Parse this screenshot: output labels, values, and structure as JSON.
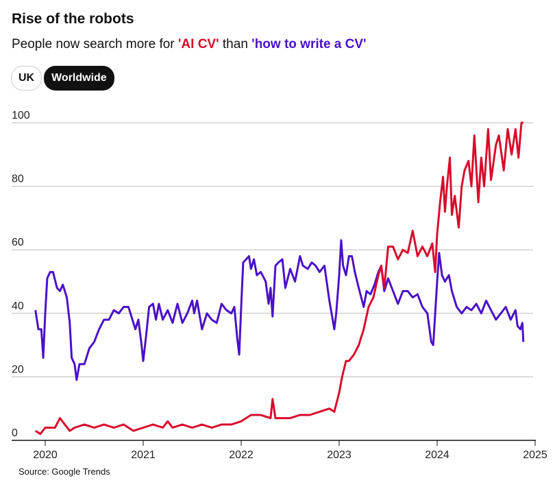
{
  "header": {
    "title": "Rise of the robots",
    "subtitle_pre": "People now search more for ",
    "subtitle_ai": "'AI CV'",
    "subtitle_mid": " than ",
    "subtitle_hw": "'how to write a CV'"
  },
  "toggles": [
    {
      "label": "UK",
      "active": false
    },
    {
      "label": "Worldwide",
      "active": true
    }
  ],
  "source": "Source: Google Trends",
  "chart_data": {
    "type": "line",
    "title": "Rise of the robots",
    "xlabel": "",
    "ylabel": "",
    "xlim": [
      2019.7,
      2025
    ],
    "ylim": [
      0,
      100
    ],
    "x_ticks": [
      "2020",
      "2021",
      "2022",
      "2023",
      "2024",
      "2025"
    ],
    "y_ticks": [
      "0",
      "20",
      "40",
      "60",
      "80",
      "100"
    ],
    "grid": true,
    "series": [
      {
        "name": "'how to write a CV'",
        "color": "#4a11c8",
        "points": [
          [
            2019.9,
            41
          ],
          [
            2019.93,
            35
          ],
          [
            2019.96,
            35
          ],
          [
            2019.98,
            26
          ],
          [
            2020.0,
            40
          ],
          [
            2020.02,
            51
          ],
          [
            2020.05,
            53
          ],
          [
            2020.08,
            53
          ],
          [
            2020.12,
            48
          ],
          [
            2020.15,
            47
          ],
          [
            2020.18,
            49
          ],
          [
            2020.22,
            45
          ],
          [
            2020.25,
            37
          ],
          [
            2020.27,
            26
          ],
          [
            2020.3,
            24
          ],
          [
            2020.32,
            19
          ],
          [
            2020.35,
            24
          ],
          [
            2020.4,
            24
          ],
          [
            2020.45,
            29
          ],
          [
            2020.5,
            31
          ],
          [
            2020.55,
            35
          ],
          [
            2020.6,
            38
          ],
          [
            2020.65,
            38
          ],
          [
            2020.7,
            41
          ],
          [
            2020.75,
            40
          ],
          [
            2020.8,
            42
          ],
          [
            2020.85,
            42
          ],
          [
            2020.9,
            37
          ],
          [
            2020.92,
            35
          ],
          [
            2020.95,
            38
          ],
          [
            2020.98,
            31
          ],
          [
            2021.0,
            25
          ],
          [
            2021.03,
            33
          ],
          [
            2021.06,
            42
          ],
          [
            2021.1,
            43
          ],
          [
            2021.13,
            38
          ],
          [
            2021.16,
            43
          ],
          [
            2021.2,
            38
          ],
          [
            2021.25,
            41
          ],
          [
            2021.3,
            37
          ],
          [
            2021.35,
            43
          ],
          [
            2021.4,
            37
          ],
          [
            2021.45,
            40
          ],
          [
            2021.5,
            44
          ],
          [
            2021.52,
            40
          ],
          [
            2021.55,
            44
          ],
          [
            2021.6,
            35
          ],
          [
            2021.65,
            40
          ],
          [
            2021.7,
            38
          ],
          [
            2021.75,
            37
          ],
          [
            2021.8,
            43
          ],
          [
            2021.85,
            41
          ],
          [
            2021.9,
            40
          ],
          [
            2021.93,
            42
          ],
          [
            2021.96,
            32
          ],
          [
            2021.98,
            27
          ],
          [
            2022.0,
            42
          ],
          [
            2022.02,
            56
          ],
          [
            2022.05,
            57
          ],
          [
            2022.08,
            58
          ],
          [
            2022.1,
            54
          ],
          [
            2022.13,
            57
          ],
          [
            2022.16,
            52
          ],
          [
            2022.2,
            53
          ],
          [
            2022.25,
            50
          ],
          [
            2022.28,
            43
          ],
          [
            2022.3,
            48
          ],
          [
            2022.32,
            39
          ],
          [
            2022.35,
            55
          ],
          [
            2022.38,
            56
          ],
          [
            2022.42,
            57
          ],
          [
            2022.45,
            48
          ],
          [
            2022.5,
            54
          ],
          [
            2022.55,
            50
          ],
          [
            2022.6,
            58
          ],
          [
            2022.63,
            55
          ],
          [
            2022.68,
            54
          ],
          [
            2022.72,
            56
          ],
          [
            2022.76,
            55
          ],
          [
            2022.8,
            53
          ],
          [
            2022.85,
            55
          ],
          [
            2022.9,
            44
          ],
          [
            2022.95,
            35
          ],
          [
            2022.97,
            40
          ],
          [
            2023.0,
            52
          ],
          [
            2023.02,
            63
          ],
          [
            2023.04,
            55
          ],
          [
            2023.07,
            52
          ],
          [
            2023.1,
            58
          ],
          [
            2023.13,
            58
          ],
          [
            2023.16,
            53
          ],
          [
            2023.2,
            48
          ],
          [
            2023.25,
            42
          ],
          [
            2023.28,
            47
          ],
          [
            2023.32,
            46
          ],
          [
            2023.36,
            49
          ],
          [
            2023.4,
            53
          ],
          [
            2023.43,
            55
          ],
          [
            2023.46,
            47
          ],
          [
            2023.5,
            51
          ],
          [
            2023.55,
            47
          ],
          [
            2023.6,
            43
          ],
          [
            2023.65,
            47
          ],
          [
            2023.7,
            47
          ],
          [
            2023.75,
            45
          ],
          [
            2023.8,
            46
          ],
          [
            2023.85,
            42
          ],
          [
            2023.9,
            40
          ],
          [
            2023.94,
            31
          ],
          [
            2023.96,
            30
          ],
          [
            2024.0,
            50
          ],
          [
            2024.02,
            59
          ],
          [
            2024.05,
            52
          ],
          [
            2024.08,
            50
          ],
          [
            2024.12,
            52
          ],
          [
            2024.15,
            47
          ],
          [
            2024.2,
            42
          ],
          [
            2024.25,
            40
          ],
          [
            2024.3,
            42
          ],
          [
            2024.35,
            41
          ],
          [
            2024.4,
            43
          ],
          [
            2024.45,
            40
          ],
          [
            2024.5,
            44
          ],
          [
            2024.55,
            41
          ],
          [
            2024.6,
            38
          ],
          [
            2024.65,
            40
          ],
          [
            2024.7,
            42
          ],
          [
            2024.75,
            38
          ],
          [
            2024.8,
            41
          ],
          [
            2024.82,
            36
          ],
          [
            2024.85,
            35
          ],
          [
            2024.87,
            37
          ],
          [
            2024.88,
            31
          ]
        ]
      },
      {
        "name": "'AI CV'",
        "color": "#d90a2c",
        "points": [
          [
            2019.9,
            3
          ],
          [
            2019.95,
            2
          ],
          [
            2020.0,
            4
          ],
          [
            2020.05,
            4
          ],
          [
            2020.1,
            4
          ],
          [
            2020.15,
            7
          ],
          [
            2020.2,
            5
          ],
          [
            2020.25,
            3
          ],
          [
            2020.3,
            4
          ],
          [
            2020.4,
            5
          ],
          [
            2020.5,
            4
          ],
          [
            2020.6,
            5
          ],
          [
            2020.7,
            4
          ],
          [
            2020.8,
            5
          ],
          [
            2020.9,
            3
          ],
          [
            2021.0,
            4
          ],
          [
            2021.1,
            5
          ],
          [
            2021.2,
            4
          ],
          [
            2021.25,
            6
          ],
          [
            2021.3,
            4
          ],
          [
            2021.4,
            5
          ],
          [
            2021.5,
            4
          ],
          [
            2021.6,
            5
          ],
          [
            2021.7,
            4
          ],
          [
            2021.8,
            5
          ],
          [
            2021.9,
            5
          ],
          [
            2022.0,
            6
          ],
          [
            2022.1,
            8
          ],
          [
            2022.2,
            8
          ],
          [
            2022.3,
            7
          ],
          [
            2022.32,
            13
          ],
          [
            2022.35,
            7
          ],
          [
            2022.5,
            7
          ],
          [
            2022.6,
            8
          ],
          [
            2022.7,
            8
          ],
          [
            2022.8,
            9
          ],
          [
            2022.9,
            10
          ],
          [
            2022.95,
            9
          ],
          [
            2023.0,
            15
          ],
          [
            2023.03,
            20
          ],
          [
            2023.07,
            25
          ],
          [
            2023.1,
            25
          ],
          [
            2023.15,
            27
          ],
          [
            2023.2,
            30
          ],
          [
            2023.25,
            35
          ],
          [
            2023.3,
            42
          ],
          [
            2023.35,
            45
          ],
          [
            2023.4,
            52
          ],
          [
            2023.43,
            55
          ],
          [
            2023.46,
            48
          ],
          [
            2023.5,
            61
          ],
          [
            2023.55,
            61
          ],
          [
            2023.6,
            57
          ],
          [
            2023.65,
            60
          ],
          [
            2023.7,
            59
          ],
          [
            2023.75,
            66
          ],
          [
            2023.8,
            58
          ],
          [
            2023.85,
            61
          ],
          [
            2023.9,
            58
          ],
          [
            2023.95,
            62
          ],
          [
            2023.98,
            53
          ],
          [
            2024.0,
            65
          ],
          [
            2024.03,
            75
          ],
          [
            2024.06,
            83
          ],
          [
            2024.08,
            72
          ],
          [
            2024.1,
            80
          ],
          [
            2024.13,
            89
          ],
          [
            2024.15,
            71
          ],
          [
            2024.18,
            77
          ],
          [
            2024.22,
            67
          ],
          [
            2024.25,
            80
          ],
          [
            2024.28,
            85
          ],
          [
            2024.32,
            88
          ],
          [
            2024.35,
            80
          ],
          [
            2024.38,
            96
          ],
          [
            2024.42,
            75
          ],
          [
            2024.45,
            89
          ],
          [
            2024.48,
            80
          ],
          [
            2024.52,
            98
          ],
          [
            2024.55,
            82
          ],
          [
            2024.6,
            93
          ],
          [
            2024.63,
            96
          ],
          [
            2024.68,
            85
          ],
          [
            2024.72,
            98
          ],
          [
            2024.76,
            90
          ],
          [
            2024.8,
            98
          ],
          [
            2024.83,
            89
          ],
          [
            2024.86,
            100
          ],
          [
            2024.88,
            100
          ]
        ]
      }
    ]
  }
}
